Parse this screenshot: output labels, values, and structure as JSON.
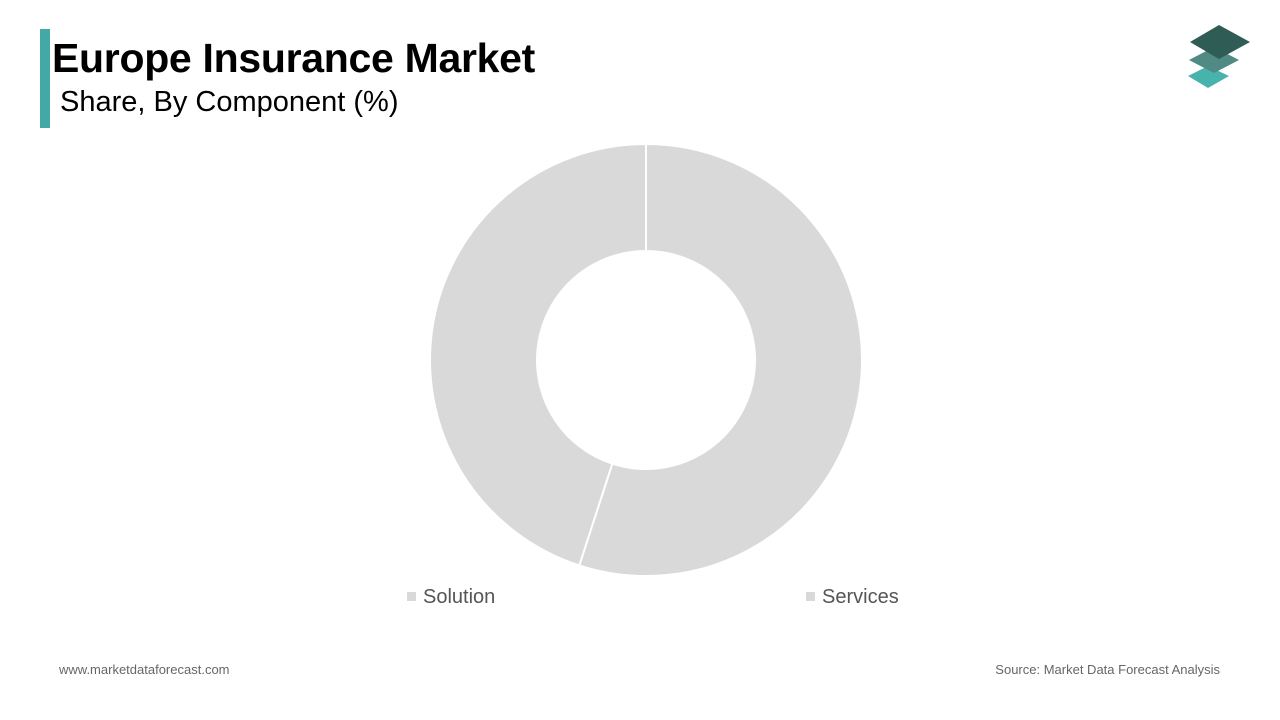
{
  "header": {
    "title": "Europe Insurance Market",
    "subtitle": "Share, By Component (%)"
  },
  "footer": {
    "website": "www.marketdataforecast.com",
    "source": "Source: Market Data Forecast Analysis"
  },
  "colors": {
    "accent": "#44a9a5",
    "slice": "#d9d9d9",
    "slice_separator": "#ffffff",
    "logo_top": "#2f5c55",
    "logo_middle": "#4f8a84",
    "logo_bottom": "#48b2ad"
  },
  "icons": {
    "logo": "stacked-layers-icon"
  },
  "chart_data": {
    "type": "pie",
    "variant": "donut",
    "legend_position": "bottom",
    "categories": [
      "Solution",
      "Services"
    ],
    "values": [
      55,
      45
    ],
    "data_labels_shown": false
  }
}
